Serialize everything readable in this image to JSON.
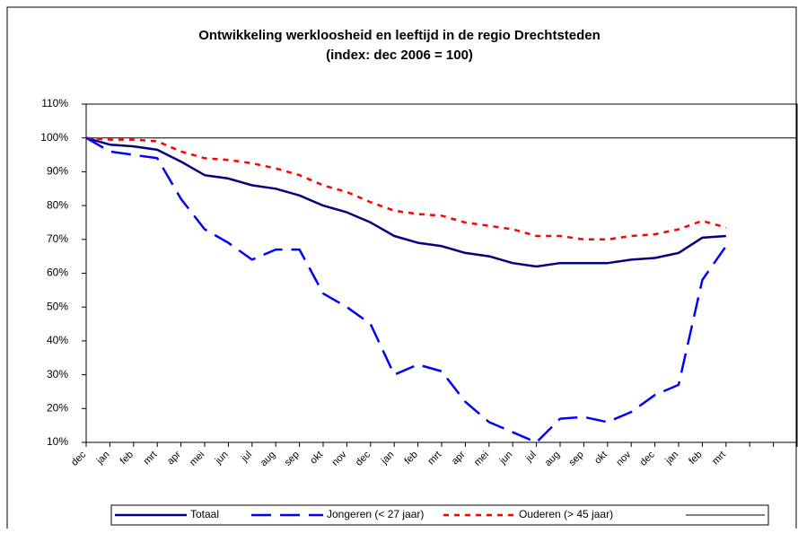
{
  "chart_data": {
    "type": "line",
    "title": "Ontwikkeling werkloosheid en leeftijd in de regio Drechtsteden",
    "subtitle": "(index: dec 2006 = 100)",
    "categories": [
      "dec",
      "jan",
      "feb",
      "mrt",
      "apr",
      "mei",
      "jun",
      "jul",
      "aug",
      "sep",
      "okt",
      "nov",
      "dec",
      "jan",
      "feb",
      "mrt",
      "apr",
      "mei",
      "jun",
      "jul",
      "aug",
      "sep",
      "okt",
      "nov",
      "dec",
      "jan",
      "feb",
      "mrt",
      null,
      null,
      null
    ],
    "series": [
      {
        "name": "Totaal",
        "color": "#000080",
        "dash": "solid",
        "values": [
          100,
          98,
          97.5,
          96.5,
          93,
          89,
          88,
          86,
          85,
          83,
          80,
          78,
          75,
          71,
          69,
          68,
          66,
          65,
          63,
          62,
          63,
          63,
          63,
          64,
          64.5,
          66,
          70.5,
          71,
          null,
          null,
          null
        ]
      },
      {
        "name": "Jongeren (< 27 jaar)",
        "color": "#0000ff",
        "dash": "long",
        "values": [
          100,
          96,
          95,
          94,
          82,
          73,
          69,
          64,
          67,
          67,
          54,
          50,
          45,
          30,
          33,
          31,
          22,
          16,
          13,
          10,
          17,
          17.5,
          16,
          19,
          24,
          27,
          58,
          68,
          null,
          null,
          null
        ]
      },
      {
        "name": "Ouderen (> 45 jaar)",
        "color": "#ff0000",
        "dash": "short",
        "values": [
          100,
          99.5,
          99.5,
          99,
          96,
          94,
          93.5,
          92.5,
          91,
          89,
          86,
          84,
          81,
          78.5,
          77.5,
          77,
          75,
          74,
          73,
          71,
          71,
          70,
          70,
          71,
          71.5,
          73,
          75.5,
          73.5,
          null,
          null,
          null
        ]
      },
      {
        "color": "#000000",
        "dash": "solid",
        "values": [
          100,
          100,
          100,
          100,
          100,
          100,
          100,
          100,
          100,
          100,
          100,
          100,
          100,
          100,
          100,
          100,
          100,
          100,
          100,
          100,
          100,
          100,
          100,
          100,
          100,
          100,
          100,
          100,
          100,
          100,
          100
        ]
      }
    ],
    "ylim": [
      10,
      110
    ],
    "yticks": [
      {
        "value": 10,
        "label": "10%"
      },
      {
        "value": 20,
        "label": "20%"
      },
      {
        "value": 30,
        "label": "30%"
      },
      {
        "value": 40,
        "label": "40%"
      },
      {
        "value": 50,
        "label": "50%"
      },
      {
        "value": 60,
        "label": "60%"
      },
      {
        "value": 70,
        "label": "70%"
      },
      {
        "value": 80,
        "label": "80%"
      },
      {
        "value": 90,
        "label": "90%"
      },
      {
        "value": 100,
        "label": "100%"
      },
      {
        "value": 110,
        "label": "110%"
      }
    ],
    "legend": "bottom"
  }
}
